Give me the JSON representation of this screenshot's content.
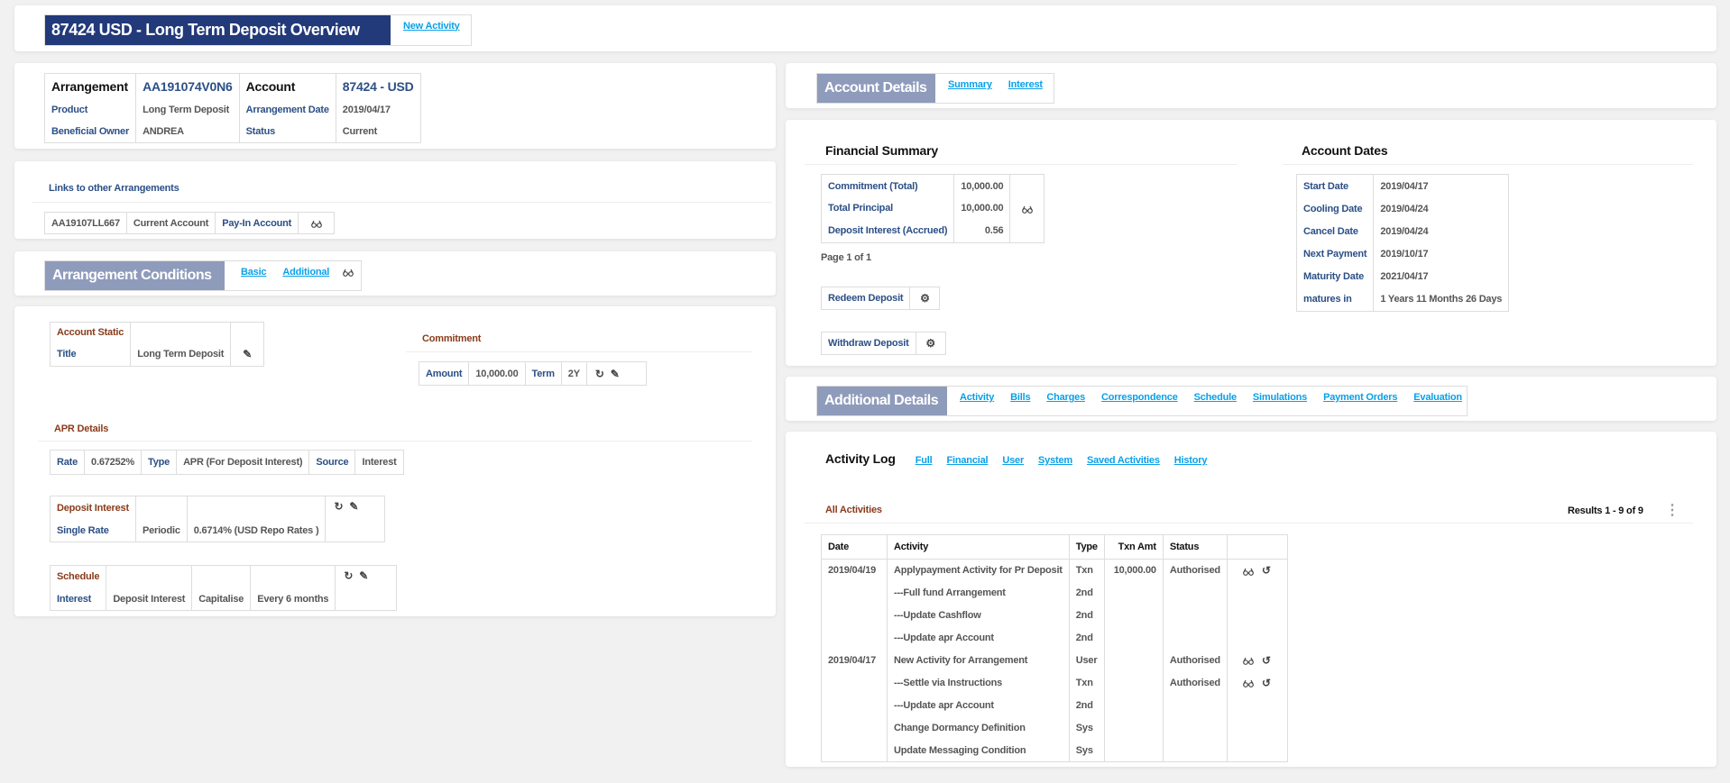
{
  "header": {
    "title": "87424 USD - Long Term Deposit Overview",
    "new_activity": "New Activity"
  },
  "arrangement": {
    "arrangement_label": "Arrangement",
    "arrangement_id": "AA191074V0N6",
    "account_label": "Account",
    "account_value": "87424 - USD",
    "product_label": "Product",
    "product_value": "Long Term Deposit",
    "arr_date_label": "Arrangement Date",
    "arr_date_value": "2019/04/17",
    "owner_label": "Beneficial Owner",
    "owner_value": "ANDREA",
    "status_label": "Status",
    "status_value": "Current"
  },
  "links": {
    "title": "Links to other Arrangements",
    "id": "AA19107LL667",
    "type": "Current Account",
    "role": "Pay-In Account",
    "icon": "glasses-icon"
  },
  "conditions": {
    "title": "Arrangement Conditions",
    "tabs": [
      "Basic",
      "Additional"
    ]
  },
  "account_static": {
    "heading": "Account Static",
    "title_label": "Title",
    "title_value": "Long Term Deposit"
  },
  "commitment": {
    "heading": "Commitment",
    "amount_label": "Amount",
    "amount": "10,000.00",
    "term_label": "Term",
    "term": "2Y"
  },
  "apr": {
    "heading": "APR Details",
    "rate_label": "Rate",
    "rate": "0.67252%",
    "type_label": "Type",
    "type": "APR (For Deposit Interest)",
    "source_label": "Source",
    "source": "Interest"
  },
  "deposit_interest": {
    "heading": "Deposit Interest",
    "label": "Single Rate",
    "method": "Periodic",
    "value": "0.6714% (USD Repo Rates )"
  },
  "schedule": {
    "heading": "Schedule",
    "label": "Interest",
    "property": "Deposit Interest",
    "action": "Capitalise",
    "frequency": "Every 6 months"
  },
  "account_details": {
    "title": "Account Details",
    "tabs": [
      "Summary",
      "Interest"
    ]
  },
  "financial_summary": {
    "title": "Financial Summary",
    "rows": [
      {
        "label": "Commitment (Total)",
        "value": "10,000.00"
      },
      {
        "label": "Total Principal",
        "value": "10,000.00"
      },
      {
        "label": "Deposit Interest (Accrued)",
        "value": "0.56"
      }
    ],
    "page": "Page 1 of 1",
    "redeem": "Redeem Deposit",
    "withdraw": "Withdraw Deposit"
  },
  "account_dates": {
    "title": "Account Dates",
    "rows": [
      {
        "label": "Start Date",
        "value": "2019/04/17"
      },
      {
        "label": "Cooling Date",
        "value": "2019/04/24"
      },
      {
        "label": "Cancel Date",
        "value": "2019/04/24"
      },
      {
        "label": "Next Payment",
        "value": "2019/10/17"
      },
      {
        "label": "Maturity Date",
        "value": "2021/04/17"
      },
      {
        "label": "matures in",
        "value": "1 Years 11 Months 26 Days"
      }
    ]
  },
  "additional_details": {
    "title": "Additional Details",
    "tabs": [
      "Activity",
      "Bills",
      "Charges",
      "Correspondence",
      "Schedule",
      "Simulations",
      "Payment Orders",
      "Evaluation"
    ]
  },
  "activity_log": {
    "title": "Activity Log",
    "tabs": [
      "Full",
      "Financial",
      "User",
      "System",
      "Saved Activities",
      "History"
    ],
    "section": "All Activities",
    "results": "Results 1 - 9 of 9",
    "columns": [
      "Date",
      "Activity",
      "Type",
      "Txn Amt",
      "Status"
    ],
    "rows": [
      {
        "date": "2019/04/19",
        "activity": "Applypayment Activity for Pr Deposit",
        "type": "Txn",
        "amount": "10,000.00",
        "status": "Authorised",
        "actions": true
      },
      {
        "date": "",
        "activity": "---Full fund Arrangement",
        "type": "2nd",
        "amount": "",
        "status": "",
        "actions": false
      },
      {
        "date": "",
        "activity": "---Update Cashflow",
        "type": "2nd",
        "amount": "",
        "status": "",
        "actions": false
      },
      {
        "date": "",
        "activity": "---Update apr Account",
        "type": "2nd",
        "amount": "",
        "status": "",
        "actions": false
      },
      {
        "date": "2019/04/17",
        "activity": "New Activity for Arrangement",
        "type": "User",
        "amount": "",
        "status": "Authorised",
        "actions": true
      },
      {
        "date": "",
        "activity": "---Settle via Instructions",
        "type": "Txn",
        "amount": "",
        "status": "Authorised",
        "actions": true
      },
      {
        "date": "",
        "activity": "---Update apr Account",
        "type": "2nd",
        "amount": "",
        "status": "",
        "actions": false
      },
      {
        "date": "",
        "activity": "Change Dormancy Definition",
        "type": "Sys",
        "amount": "",
        "status": "",
        "actions": false
      },
      {
        "date": "",
        "activity": "Update Messaging Condition",
        "type": "Sys",
        "amount": "",
        "status": "",
        "actions": false
      }
    ]
  },
  "colors": {
    "header": "#22397a",
    "section": "#8f9bbb",
    "link": "#0aa0e8",
    "label": "#2b4f86",
    "heading": "#8a3b1b"
  }
}
